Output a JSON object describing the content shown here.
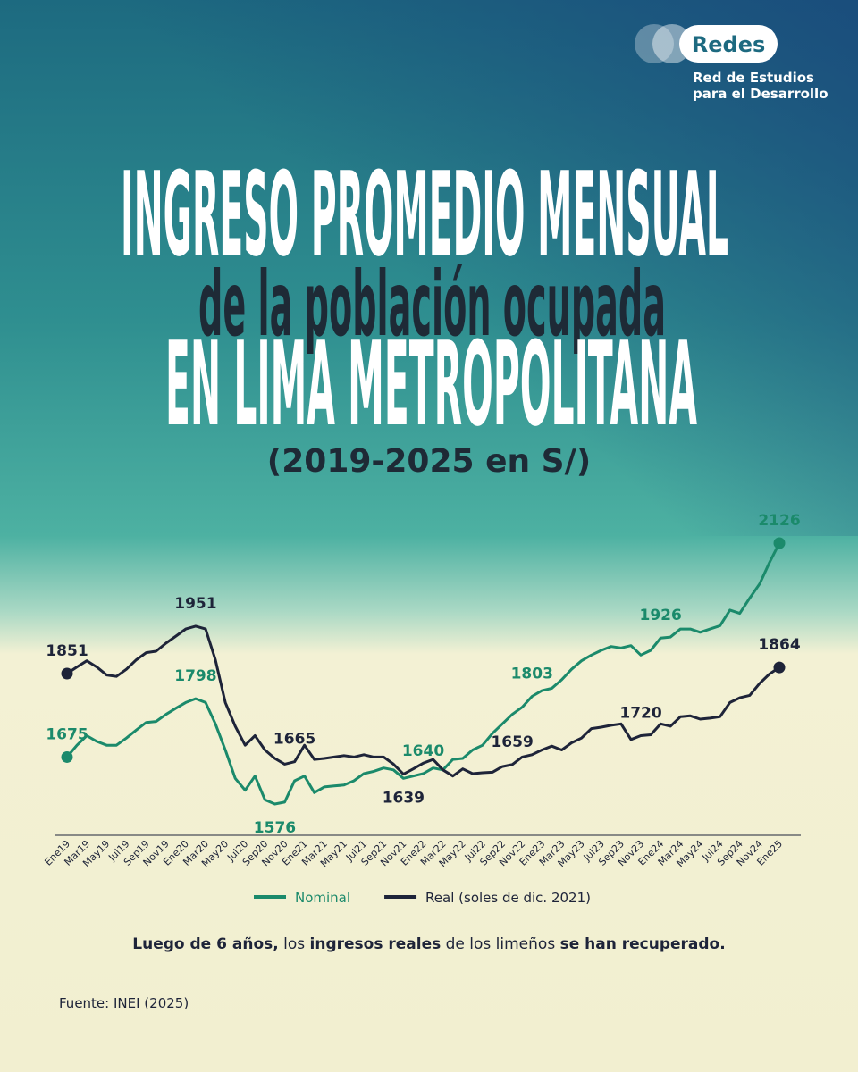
{
  "chart_data": {
    "type": "line",
    "title": [
      "INGRESO PROMEDIO MENSUAL",
      "de la población ocupada",
      "EN LIMA METROPOLITANA"
    ],
    "subtitle": "(2019-2025 en S/)",
    "logo": {
      "name": "Redes",
      "tagline": [
        "Red de Estudios",
        "para el Desarrollo"
      ]
    },
    "categories": [
      "Ene19",
      null,
      "Mar19",
      null,
      "May19",
      null,
      "Jul19",
      null,
      "Sep19",
      null,
      "Nov19",
      null,
      "Ene20",
      null,
      "Mar20",
      null,
      "May20",
      null,
      "Jul20",
      null,
      "Sep20",
      null,
      "Nov20",
      null,
      "Ene21",
      null,
      "Mar21",
      null,
      "May21",
      null,
      "Jul21",
      null,
      "Sep21",
      null,
      "Nov21",
      null,
      "Ene22",
      null,
      "Mar22",
      null,
      "May22",
      null,
      "Jul22",
      null,
      "Sep22",
      null,
      "Nov22",
      null,
      "Ene23",
      null,
      "Mar23",
      null,
      "May23",
      null,
      "Jul23",
      null,
      "Sep23",
      null,
      "Nov23",
      null,
      "Ene24",
      null,
      "Mar24",
      null,
      "May24",
      null,
      "Jul24",
      null,
      "Sep24",
      null,
      "Nov24",
      null,
      "Ene25"
    ],
    "series": [
      {
        "name": "Nominal",
        "color": "#1b8a6b",
        "values": [
          1675,
          1700,
          1720,
          1708,
          1700,
          1700,
          1715,
          1732,
          1748,
          1750,
          1765,
          1778,
          1790,
          1798,
          1790,
          1745,
          1690,
          1630,
          1605,
          1635,
          1585,
          1576,
          1580,
          1625,
          1635,
          1600,
          1612,
          1614,
          1616,
          1625,
          1640,
          1645,
          1652,
          1648,
          1630,
          1635,
          1640,
          1652,
          1648,
          1670,
          1672,
          1690,
          1700,
          1725,
          1745,
          1765,
          1780,
          1803,
          1815,
          1820,
          1838,
          1860,
          1878,
          1890,
          1900,
          1908,
          1905,
          1910,
          1890,
          1900,
          1926,
          1928,
          1945,
          1945,
          1938,
          1945,
          1952,
          1985,
          1978,
          2010,
          2040,
          2085,
          2126
        ],
        "value_labels": [
          "1675",
          null,
          null,
          null,
          null,
          null,
          null,
          null,
          null,
          null,
          null,
          null,
          null,
          "1798",
          null,
          null,
          null,
          null,
          null,
          null,
          null,
          "1576",
          null,
          null,
          null,
          null,
          null,
          null,
          null,
          null,
          null,
          null,
          null,
          null,
          null,
          null,
          "1640",
          null,
          null,
          null,
          null,
          null,
          null,
          null,
          null,
          null,
          null,
          "1803",
          null,
          null,
          null,
          null,
          null,
          null,
          null,
          null,
          null,
          null,
          null,
          null,
          "1926",
          null,
          null,
          null,
          null,
          null,
          null,
          null,
          null,
          null,
          null,
          null,
          "2126"
        ]
      },
      {
        "name": "Real (soles de dic. 2021)",
        "color": "#1e2439",
        "values": [
          1851,
          1865,
          1878,
          1865,
          1848,
          1845,
          1860,
          1880,
          1895,
          1898,
          1915,
          1930,
          1945,
          1951,
          1945,
          1880,
          1790,
          1740,
          1700,
          1720,
          1690,
          1672,
          1660,
          1665,
          1700,
          1670,
          1672,
          1675,
          1678,
          1675,
          1680,
          1675,
          1675,
          1660,
          1639,
          1650,
          1662,
          1670,
          1648,
          1635,
          1650,
          1640,
          1642,
          1643,
          1655,
          1659,
          1675,
          1680,
          1690,
          1698,
          1690,
          1705,
          1715,
          1735,
          1738,
          1742,
          1745,
          1712,
          1720,
          1722,
          1745,
          1740,
          1760,
          1762,
          1755,
          1757,
          1760,
          1790,
          1800,
          1805,
          1830,
          1850,
          1864
        ],
        "value_labels": [
          "1851",
          null,
          null,
          null,
          null,
          null,
          null,
          null,
          null,
          null,
          null,
          null,
          null,
          "1951",
          null,
          null,
          null,
          null,
          null,
          null,
          null,
          null,
          null,
          "1665",
          null,
          null,
          null,
          null,
          null,
          null,
          null,
          null,
          null,
          null,
          "1639",
          null,
          null,
          null,
          null,
          null,
          null,
          null,
          null,
          null,
          null,
          "1659",
          null,
          null,
          null,
          null,
          null,
          null,
          null,
          null,
          null,
          null,
          null,
          null,
          "1720",
          null,
          null,
          null,
          null,
          null,
          null,
          null,
          null,
          null,
          null,
          null,
          null,
          null,
          "1864"
        ]
      }
    ],
    "note": [
      {
        "text": "Luego de 6 años,",
        "bold": true
      },
      {
        "text": " los ",
        "bold": false
      },
      {
        "text": "ingresos reales",
        "bold": true
      },
      {
        "text": " de los limeños ",
        "bold": false
      },
      {
        "text": "se han recuperado.",
        "bold": true
      }
    ],
    "source": "Fuente: INEI (2025)"
  }
}
